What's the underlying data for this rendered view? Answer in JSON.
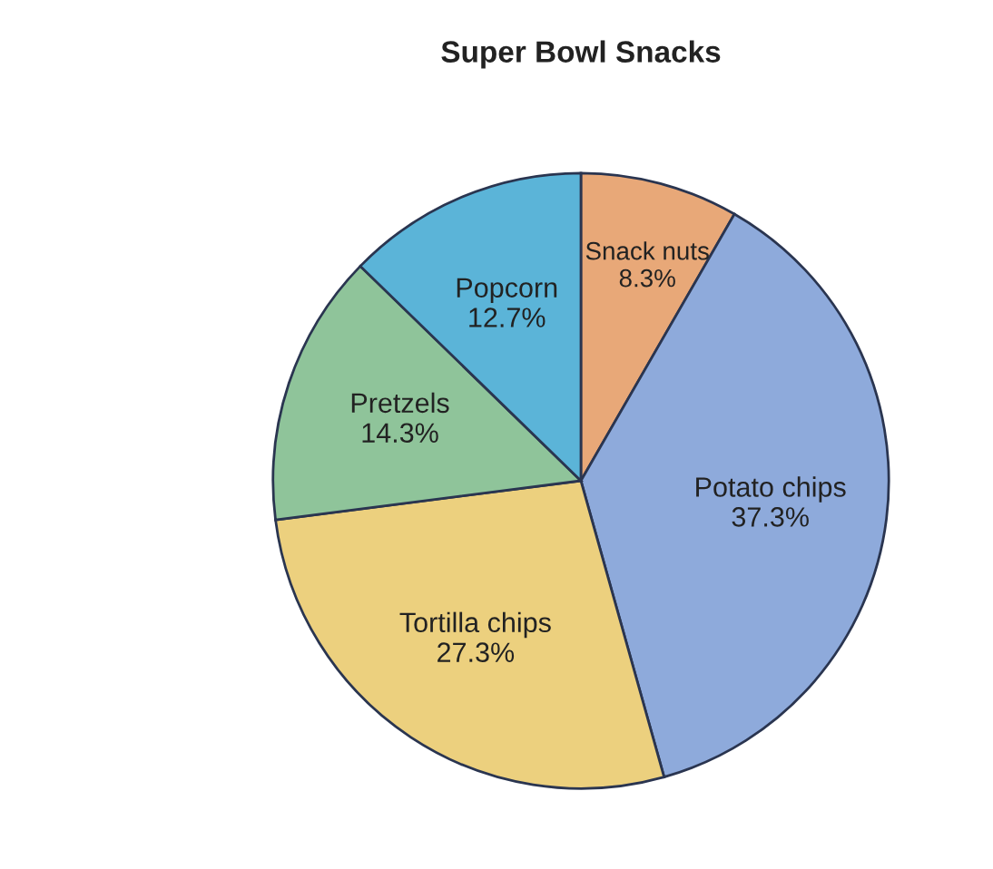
{
  "chart_data": {
    "type": "pie",
    "title": "Super Bowl Snacks",
    "categories": [
      "Snack nuts",
      "Potato chips",
      "Tortilla chips",
      "Pretzels",
      "Popcorn"
    ],
    "values": [
      8.3,
      37.3,
      27.3,
      14.3,
      12.7
    ],
    "value_labels": [
      "8.3%",
      "37.3%",
      "27.3%",
      "14.3%",
      "12.7%"
    ],
    "colors": [
      "#e8a878",
      "#8eaadb",
      "#ecd07e",
      "#8fc49a",
      "#5bb4d8"
    ]
  }
}
